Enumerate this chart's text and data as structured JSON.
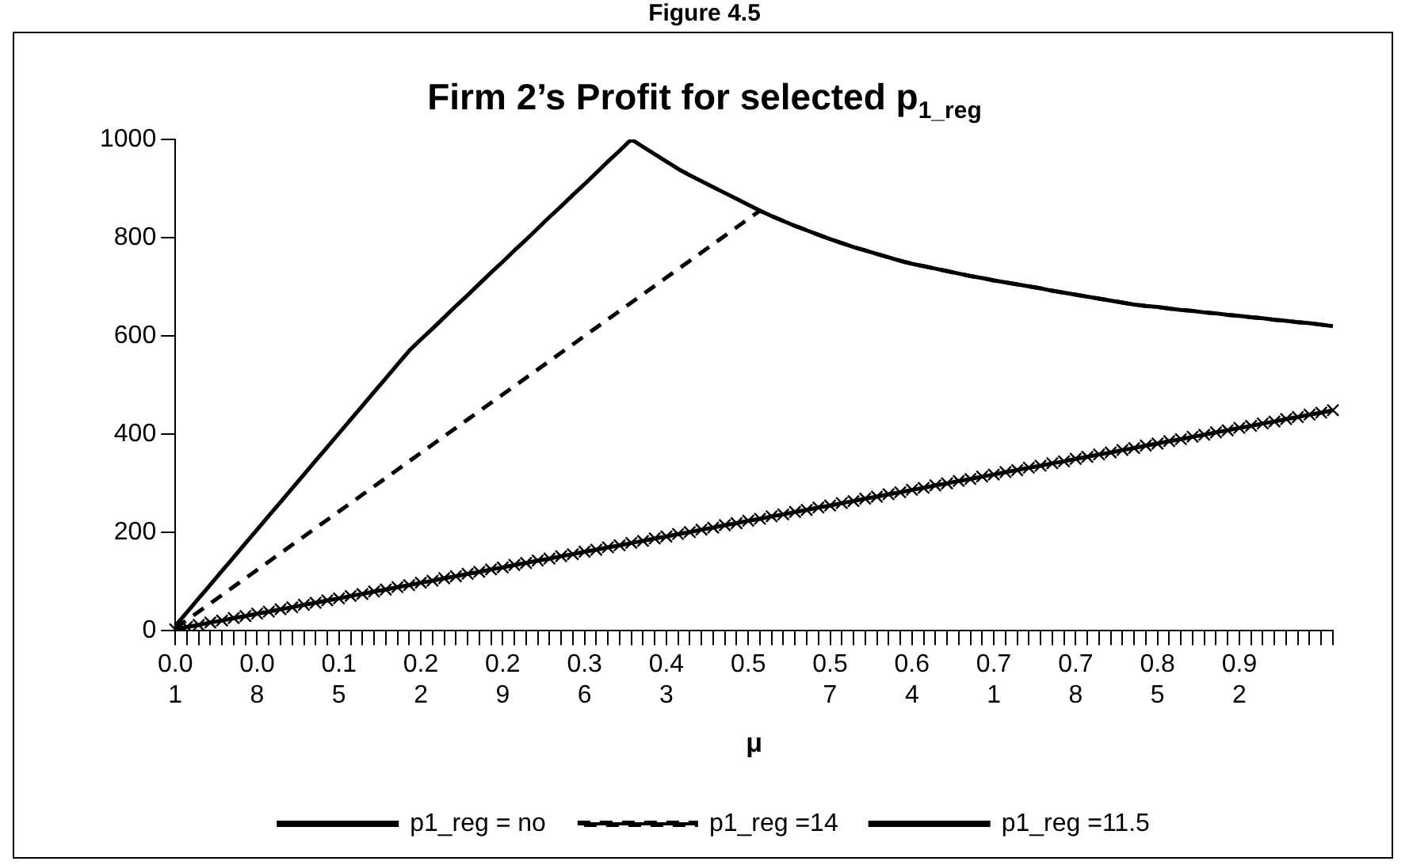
{
  "chart_data": {
    "type": "line",
    "title": "Firm 2’s Profit for selected p$_{1_reg}$",
    "xlabel": "μ",
    "annotations": [
      "Figure 4.5"
    ],
    "categories": [
      "0.01",
      null,
      null,
      null,
      null,
      null,
      null,
      "0.08",
      null,
      null,
      null,
      null,
      null,
      null,
      "0.15",
      null,
      null,
      null,
      null,
      null,
      null,
      "0.22",
      null,
      null,
      null,
      null,
      null,
      null,
      "0.29",
      null,
      null,
      null,
      null,
      null,
      null,
      "0.36",
      null,
      null,
      null,
      null,
      null,
      null,
      "0.43",
      null,
      null,
      null,
      null,
      null,
      null,
      "0.5",
      null,
      null,
      null,
      null,
      null,
      null,
      "0.57",
      null,
      null,
      null,
      null,
      null,
      null,
      "0.64",
      null,
      null,
      null,
      null,
      null,
      null,
      "0.71",
      null,
      null,
      null,
      null,
      null,
      null,
      "0.78",
      null,
      null,
      null,
      null,
      null,
      null,
      "0.85",
      null,
      null,
      null,
      null,
      null,
      null,
      "0.92",
      null,
      null,
      null,
      null,
      null,
      null,
      null,
      null
    ],
    "series": [
      {
        "name": "p1_reg = no",
        "color": "#000000",
        "line_style": "solid",
        "marker": "none",
        "values": [
          10,
          38,
          66,
          94,
          122,
          150,
          178,
          206,
          234,
          262,
          290,
          318,
          346,
          374,
          402,
          430,
          458,
          486,
          514,
          542,
          570,
          593,
          615,
          638,
          661,
          683,
          706,
          729,
          751,
          774,
          796,
          819,
          842,
          864,
          887,
          909,
          932,
          955,
          977,
          1000,
          985,
          970,
          955,
          940,
          927,
          915,
          903,
          891,
          879,
          867,
          855,
          844,
          834,
          824,
          815,
          806,
          797,
          789,
          781,
          774,
          767,
          760,
          753,
          747,
          742,
          737,
          732,
          727,
          722,
          718,
          713,
          709,
          705,
          701,
          697,
          692,
          688,
          684,
          680,
          676,
          672,
          668,
          664,
          661,
          659,
          656,
          653,
          651,
          648,
          646,
          643,
          641,
          638,
          636,
          633,
          631,
          628,
          626,
          623,
          620
        ]
      },
      {
        "name": "p1_reg =14",
        "color": "#000000",
        "line_style": "dashed",
        "marker": "none",
        "values": [
          5,
          22,
          39,
          56,
          73,
          90,
          107,
          124,
          141,
          158,
          175,
          192,
          209,
          226,
          243,
          260,
          277,
          294,
          311,
          328,
          345,
          362,
          379,
          396,
          413,
          430,
          447,
          464,
          481,
          498,
          515,
          532,
          549,
          566,
          583,
          600,
          617,
          634,
          651,
          668,
          685,
          702,
          719,
          736,
          753,
          770,
          787,
          804,
          821,
          838,
          855,
          844,
          834,
          824,
          815,
          806,
          797,
          789,
          781,
          774,
          767,
          760,
          753,
          747,
          742,
          737,
          732,
          727,
          722,
          718,
          713,
          709,
          705,
          701,
          697,
          692,
          688,
          684,
          680,
          676,
          672,
          668,
          664,
          661,
          659,
          656,
          653,
          651,
          648,
          646,
          643,
          641,
          638,
          636,
          633,
          631,
          628,
          626,
          623,
          620
        ]
      },
      {
        "name": "p1_reg =11.5",
        "color": "#000000",
        "line_style": "solid",
        "marker": "cross",
        "values": [
          3,
          8,
          12,
          17,
          21,
          26,
          30,
          35,
          39,
          44,
          48,
          53,
          57,
          62,
          66,
          71,
          75,
          80,
          84,
          89,
          93,
          98,
          102,
          107,
          111,
          116,
          120,
          125,
          129,
          134,
          138,
          143,
          147,
          152,
          156,
          161,
          165,
          170,
          174,
          179,
          183,
          188,
          192,
          197,
          201,
          206,
          210,
          215,
          219,
          224,
          228,
          233,
          237,
          242,
          246,
          251,
          255,
          260,
          264,
          269,
          273,
          278,
          282,
          287,
          291,
          296,
          300,
          305,
          309,
          314,
          318,
          323,
          327,
          332,
          336,
          341,
          345,
          350,
          354,
          359,
          363,
          368,
          372,
          377,
          381,
          386,
          390,
          395,
          399,
          404,
          408,
          413,
          417,
          422,
          426,
          431,
          435,
          440,
          444,
          449
        ]
      }
    ],
    "ylim": [
      0,
      1000
    ],
    "yticks": [
      0,
      200,
      400,
      600,
      800,
      1000
    ],
    "grid": false,
    "legend": "bottom"
  }
}
